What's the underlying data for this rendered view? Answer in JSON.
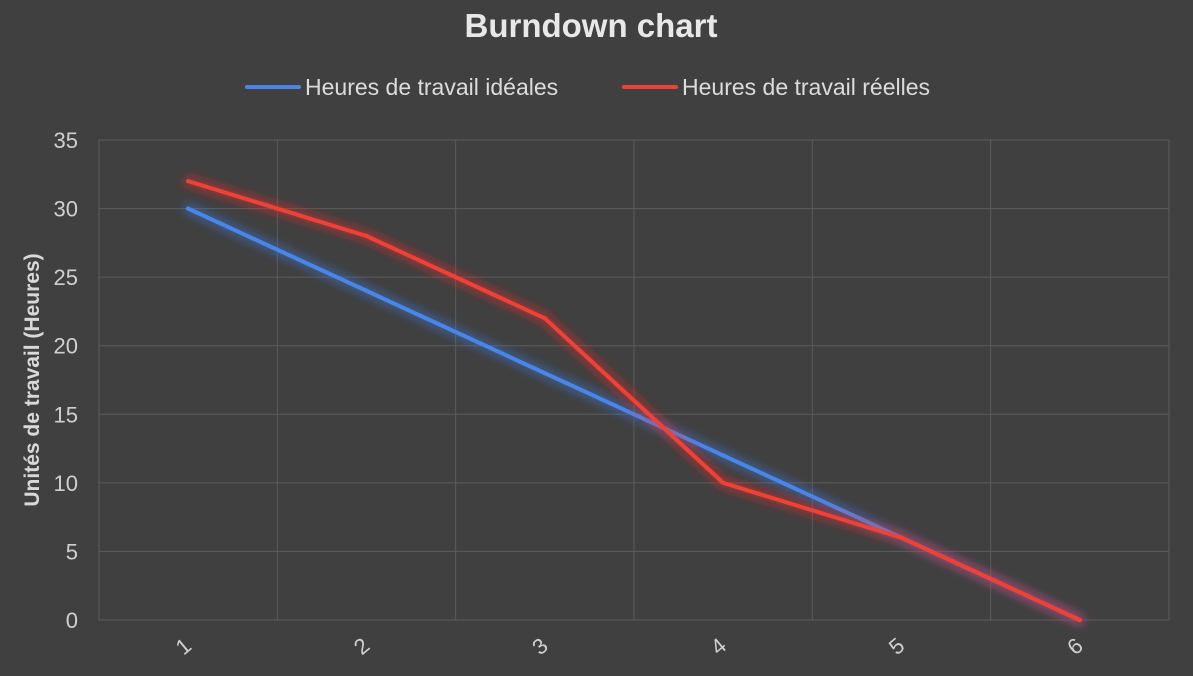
{
  "chart_data": {
    "type": "line",
    "title": "Burndown chart",
    "xlabel": "",
    "ylabel": "Unités de travail (Heures)",
    "categories": [
      "1",
      "2",
      "3",
      "4",
      "5",
      "6"
    ],
    "series": [
      {
        "name": "Heures de travail idéales",
        "values": [
          30,
          24,
          18,
          12,
          6,
          0
        ],
        "color": "#4a86e8",
        "glow": "#3d7ee8"
      },
      {
        "name": "Heures de travail réelles",
        "values": [
          32,
          28,
          22,
          10,
          6,
          0
        ],
        "color": "#ef4136",
        "glow": "#ff2a2a"
      }
    ],
    "ylim": [
      0,
      35
    ],
    "yticks": [
      0,
      5,
      10,
      15,
      20,
      25,
      30,
      35
    ],
    "grid": true,
    "legend_position": "top-center"
  },
  "colors": {
    "background": "#404040",
    "gridline": "#5c5c5c",
    "text": "#d0d0d0"
  }
}
